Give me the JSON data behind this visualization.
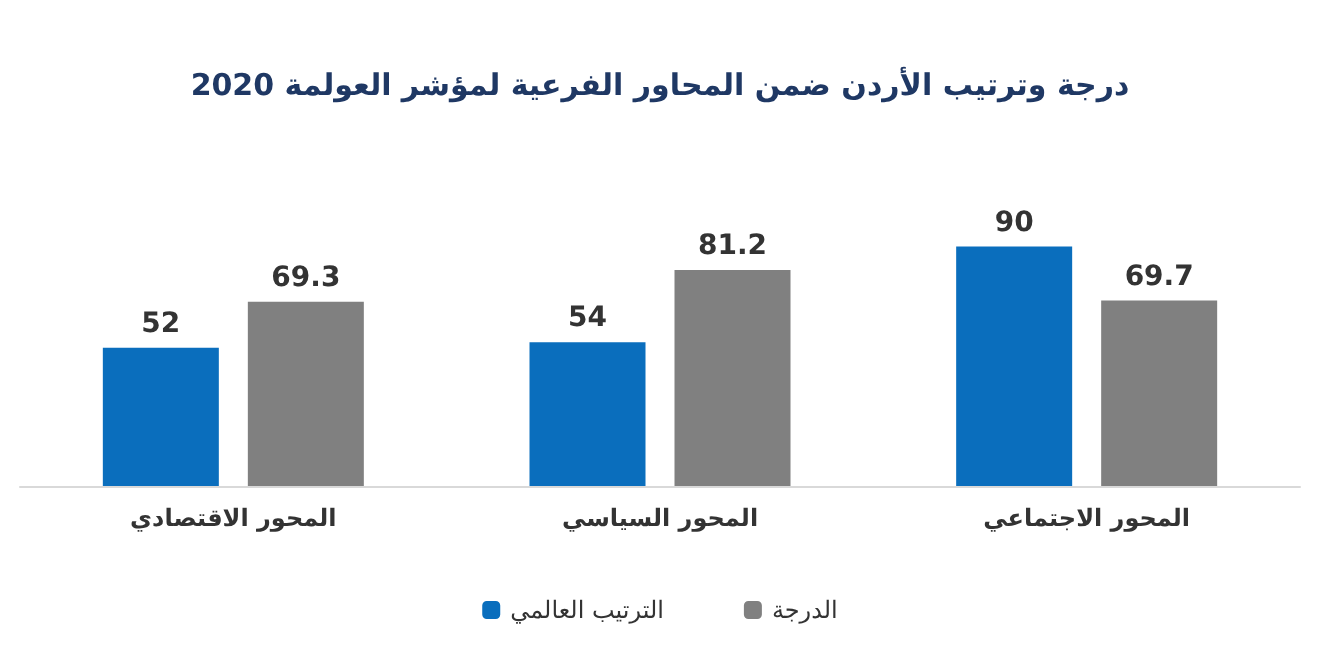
{
  "chart_data": {
    "type": "bar",
    "title": "درجة وترتيب الأردن ضمن المحاور الفرعية لمؤشر العولمة 2020",
    "categories": [
      "المحور الاقتصادي",
      "المحور السياسي",
      "المحور الاجتماعي"
    ],
    "series": [
      {
        "name": "الترتيب العالمي",
        "color": "#0a6ebd",
        "values": [
          52,
          54,
          90
        ]
      },
      {
        "name": "الدرجة",
        "color": "#808080",
        "values": [
          69.3,
          81.2,
          69.7
        ]
      }
    ],
    "data_labels": true,
    "legend": "bottom",
    "grid": false
  }
}
